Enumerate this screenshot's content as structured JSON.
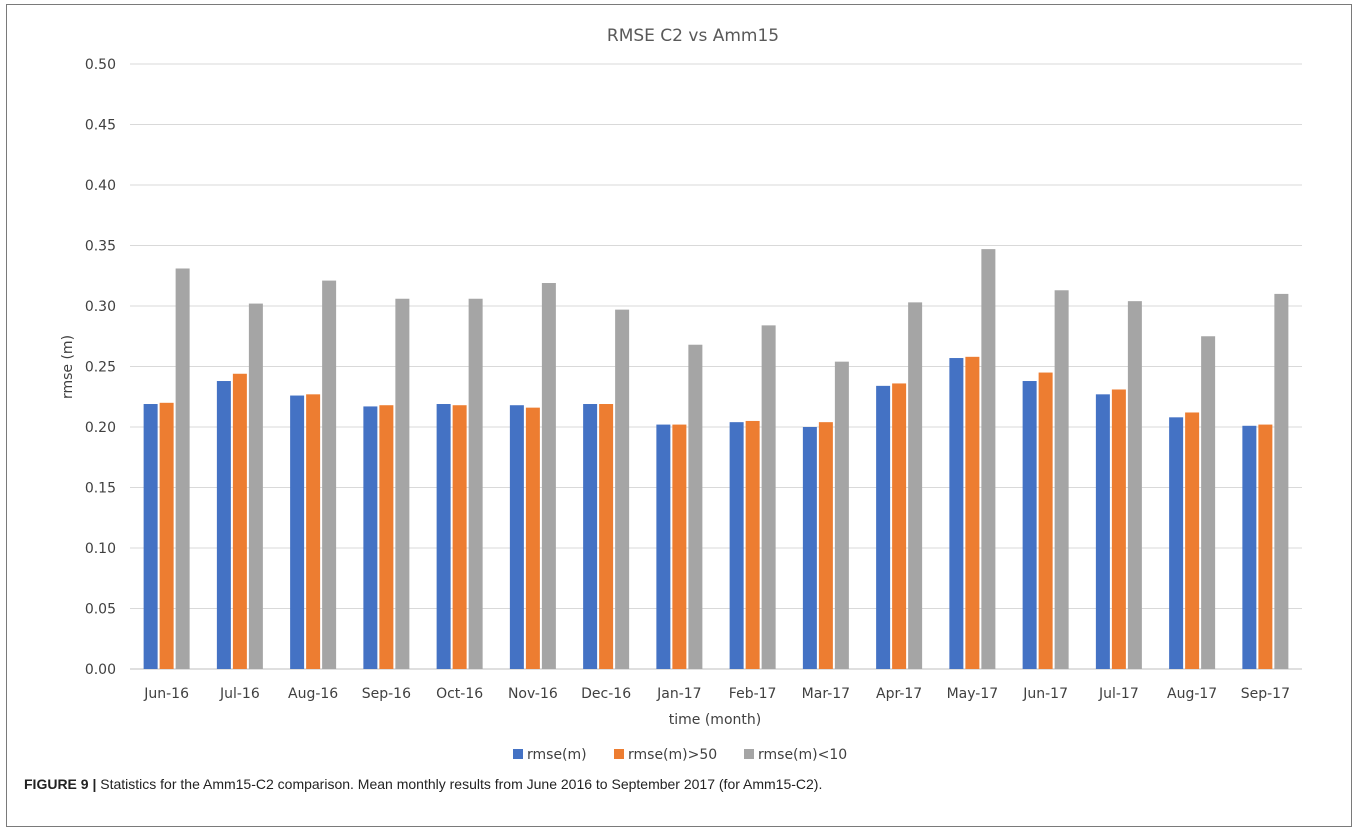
{
  "chart_data": {
    "type": "bar",
    "title": "RMSE C2 vs Amm15",
    "xlabel": "time (month)",
    "ylabel": "rmse (m)",
    "ylim": [
      0,
      0.5
    ],
    "yticks": [
      "0.00",
      "0.05",
      "0.10",
      "0.15",
      "0.20",
      "0.25",
      "0.30",
      "0.35",
      "0.40",
      "0.45",
      "0.50"
    ],
    "grid": "horizontal",
    "legend_position": "bottom",
    "categories": [
      "Jun-16",
      "Jul-16",
      "Aug-16",
      "Sep-16",
      "Oct-16",
      "Nov-16",
      "Dec-16",
      "Jan-17",
      "Feb-17",
      "Mar-17",
      "Apr-17",
      "May-17",
      "Jun-17",
      "Jul-17",
      "Aug-17",
      "Sep-17"
    ],
    "series": [
      {
        "name": "rmse(m)",
        "color": "#4472c4",
        "values": [
          0.219,
          0.238,
          0.226,
          0.217,
          0.219,
          0.218,
          0.219,
          0.202,
          0.204,
          0.2,
          0.234,
          0.257,
          0.238,
          0.227,
          0.208,
          0.201
        ]
      },
      {
        "name": "rmse(m)>50",
        "color": "#ed7d31",
        "values": [
          0.22,
          0.244,
          0.227,
          0.218,
          0.218,
          0.216,
          0.219,
          0.202,
          0.205,
          0.204,
          0.236,
          0.258,
          0.245,
          0.231,
          0.212,
          0.202
        ]
      },
      {
        "name": "rmse(m)<10",
        "color": "#a5a5a5",
        "values": [
          0.331,
          0.302,
          0.321,
          0.306,
          0.306,
          0.319,
          0.297,
          0.268,
          0.284,
          0.254,
          0.303,
          0.347,
          0.313,
          0.304,
          0.275,
          0.31
        ]
      }
    ]
  },
  "caption": {
    "label": "FIGURE 9 |",
    "text": " Statistics for the Amm15-C2 comparison. Mean monthly results from June 2016 to September 2017 (for Amm15-C2)."
  }
}
